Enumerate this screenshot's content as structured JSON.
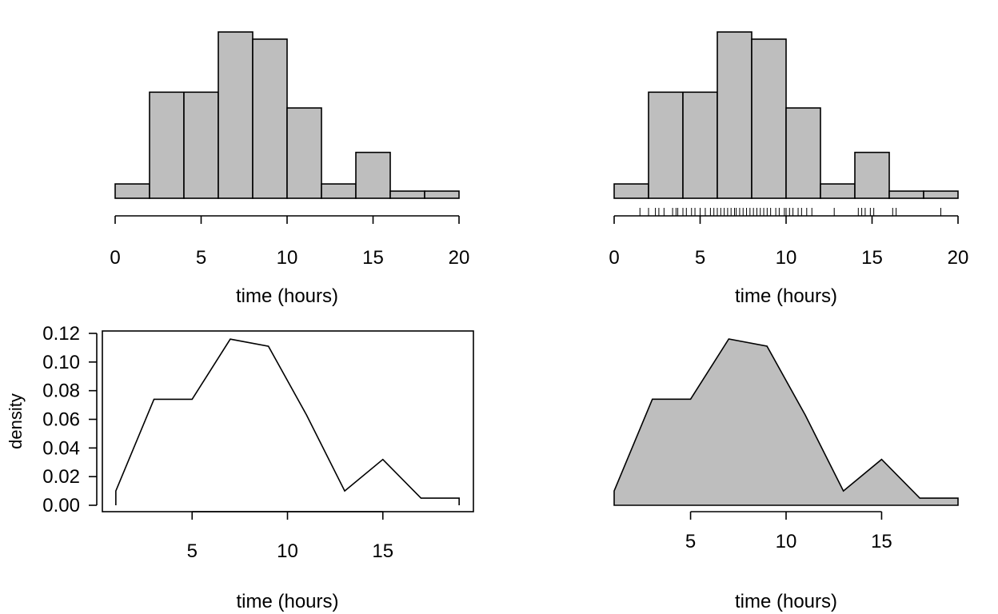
{
  "colors": {
    "fill": "#bebebe",
    "stroke": "#000000",
    "background": "#ffffff"
  },
  "chart_data": [
    {
      "type": "bar",
      "panel": "top-left",
      "bin_edges": [
        0,
        2,
        4,
        6,
        8,
        10,
        12,
        14,
        16,
        18,
        20
      ],
      "values": [
        0.01,
        0.074,
        0.074,
        0.116,
        0.111,
        0.063,
        0.01,
        0.032,
        0.005,
        0.005
      ],
      "ylim": [
        0,
        0.116
      ],
      "xlim": [
        0,
        20
      ],
      "x_ticks": [
        "0",
        "5",
        "10",
        "15",
        "20"
      ],
      "xlabel": "time (hours)",
      "ylabel": "",
      "grid": false,
      "y_axis": false
    },
    {
      "type": "bar",
      "panel": "top-right",
      "bin_edges": [
        0,
        2,
        4,
        6,
        8,
        10,
        12,
        14,
        16,
        18,
        20
      ],
      "values": [
        0.01,
        0.074,
        0.074,
        0.116,
        0.111,
        0.063,
        0.01,
        0.032,
        0.005,
        0.005
      ],
      "ylim": [
        0,
        0.116
      ],
      "xlim": [
        0,
        20
      ],
      "x_ticks": [
        "0",
        "5",
        "10",
        "15",
        "20"
      ],
      "xlabel": "time (hours)",
      "ylabel": "",
      "grid": false,
      "y_axis": false,
      "rug": [
        1.5,
        2.0,
        2.4,
        2.6,
        2.9,
        3.4,
        3.6,
        3.7,
        4.0,
        4.2,
        4.5,
        4.7,
        5.0,
        5.3,
        5.6,
        5.8,
        6.0,
        6.2,
        6.4,
        6.6,
        6.8,
        7.0,
        7.1,
        7.3,
        7.5,
        7.7,
        7.9,
        8.1,
        8.3,
        8.5,
        8.7,
        8.9,
        9.1,
        9.4,
        9.6,
        9.9,
        10.0,
        10.2,
        10.4,
        10.7,
        10.9,
        11.2,
        11.5,
        12.8,
        14.2,
        14.4,
        14.6,
        14.9,
        15.1,
        16.2,
        16.4,
        19.0
      ]
    },
    {
      "type": "line",
      "panel": "bottom-left",
      "x": [
        1,
        1,
        3,
        5,
        7,
        9,
        11,
        13,
        15,
        17,
        19,
        19
      ],
      "y": [
        0,
        0.01,
        0.074,
        0.074,
        0.116,
        0.111,
        0.063,
        0.01,
        0.032,
        0.005,
        0.005,
        0
      ],
      "xlim": [
        0,
        20
      ],
      "ylim": [
        0,
        0.12
      ],
      "x_ticks": [
        "5",
        "10",
        "15"
      ],
      "y_ticks": [
        "0.00",
        "0.02",
        "0.04",
        "0.06",
        "0.08",
        "0.10",
        "0.12"
      ],
      "xlabel": "time (hours)",
      "ylabel": "density",
      "box": true,
      "grid": false
    },
    {
      "type": "area",
      "panel": "bottom-right",
      "x": [
        1,
        1,
        3,
        5,
        7,
        9,
        11,
        13,
        15,
        17,
        19,
        19
      ],
      "y": [
        0,
        0.01,
        0.074,
        0.074,
        0.116,
        0.111,
        0.063,
        0.01,
        0.032,
        0.005,
        0.005,
        0
      ],
      "xlim": [
        1,
        19
      ],
      "ylim": [
        0,
        0.116
      ],
      "x_ticks": [
        "5",
        "10",
        "15"
      ],
      "xlabel": "time (hours)",
      "ylabel": "",
      "grid": false,
      "y_axis": false
    }
  ]
}
